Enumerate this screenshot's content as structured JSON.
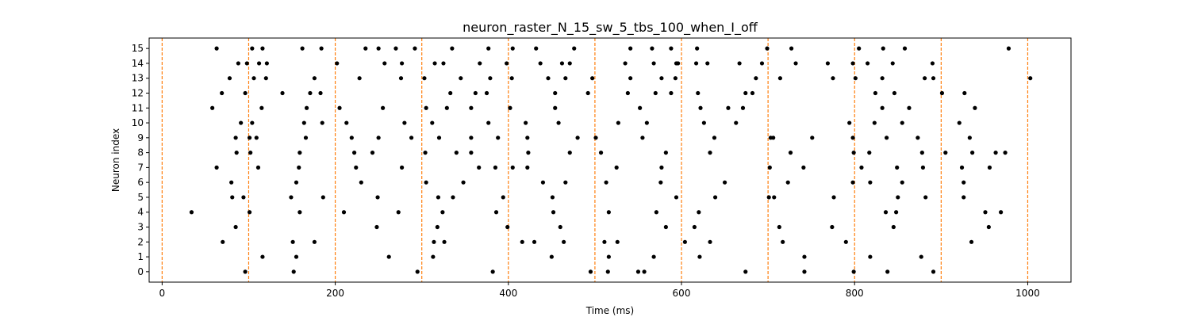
{
  "chart_data": {
    "type": "scatter",
    "title": "neuron_raster_N_15_sw_5_tbs_100_when_I_off",
    "xlabel": "Time (ms)",
    "ylabel": "Neuron index",
    "xlim": [
      -15,
      1050
    ],
    "ylim": [
      -0.7,
      15.7
    ],
    "xticks": [
      0,
      200,
      400,
      600,
      800,
      1000
    ],
    "yticks": [
      0,
      1,
      2,
      3,
      4,
      5,
      6,
      7,
      8,
      9,
      10,
      11,
      12,
      13,
      14,
      15
    ],
    "grid": false,
    "colors": {
      "spike": "#000000",
      "boundary": "#ff7f0e"
    },
    "boundaries": [
      0,
      100,
      200,
      300,
      400,
      500,
      600,
      700,
      800,
      900,
      1000
    ],
    "spikes": [
      {
        "neuron": 15,
        "times": [
          63,
          104,
          116,
          162,
          184,
          235,
          250,
          270,
          292,
          335,
          377,
          405,
          432,
          476,
          541,
          566,
          588,
          618,
          699,
          727,
          805,
          833,
          858,
          978
        ]
      },
      {
        "neuron": 14,
        "times": [
          88,
          98,
          112,
          121,
          202,
          257,
          277,
          315,
          325,
          367,
          398,
          437,
          462,
          471,
          535,
          568,
          594,
          596,
          617,
          630,
          667,
          693,
          732,
          769,
          798,
          815,
          844,
          890
        ]
      },
      {
        "neuron": 13,
        "times": [
          78,
          106,
          120,
          176,
          228,
          276,
          303,
          345,
          379,
          404,
          446,
          466,
          497,
          541,
          577,
          593,
          686,
          714,
          775,
          801,
          832,
          881,
          891,
          1003
        ]
      },
      {
        "neuron": 12,
        "times": [
          69,
          96,
          139,
          171,
          183,
          333,
          362,
          375,
          454,
          492,
          538,
          570,
          588,
          619,
          674,
          682,
          824,
          846,
          901,
          927
        ]
      },
      {
        "neuron": 11,
        "times": [
          58,
          115,
          167,
          205,
          255,
          305,
          329,
          357,
          402,
          454,
          552,
          622,
          654,
          671,
          832,
          863,
          939
        ]
      },
      {
        "neuron": 10,
        "times": [
          91,
          104,
          164,
          185,
          213,
          280,
          312,
          377,
          420,
          458,
          527,
          560,
          626,
          663,
          794,
          823,
          855,
          921
        ]
      },
      {
        "neuron": 9,
        "times": [
          85,
          101,
          109,
          166,
          219,
          250,
          288,
          320,
          357,
          388,
          422,
          480,
          501,
          555,
          638,
          703,
          706,
          751,
          798,
          837,
          873,
          933
        ]
      },
      {
        "neuron": 8,
        "times": [
          86,
          102,
          159,
          222,
          243,
          304,
          340,
          357,
          423,
          471,
          507,
          582,
          633,
          726,
          799,
          817,
          878,
          905,
          936,
          963,
          974
        ]
      },
      {
        "neuron": 7,
        "times": [
          63,
          111,
          158,
          224,
          277,
          366,
          385,
          405,
          422,
          525,
          577,
          702,
          741,
          808,
          849,
          879,
          924,
          956
        ]
      },
      {
        "neuron": 6,
        "times": [
          80,
          155,
          230,
          305,
          348,
          440,
          466,
          513,
          576,
          650,
          723,
          798,
          818,
          855,
          926
        ]
      },
      {
        "neuron": 5,
        "times": [
          81,
          94,
          149,
          186,
          249,
          319,
          336,
          394,
          451,
          594,
          639,
          701,
          707,
          776,
          850,
          882,
          926
        ]
      },
      {
        "neuron": 4,
        "times": [
          34,
          101,
          159,
          210,
          273,
          324,
          386,
          452,
          516,
          571,
          620,
          836,
          848,
          951,
          969
        ]
      },
      {
        "neuron": 3,
        "times": [
          85,
          248,
          318,
          399,
          460,
          582,
          615,
          713,
          774,
          845,
          955
        ]
      },
      {
        "neuron": 2,
        "times": [
          70,
          151,
          176,
          314,
          326,
          416,
          430,
          464,
          511,
          526,
          604,
          633,
          717,
          790,
          935
        ]
      },
      {
        "neuron": 1,
        "times": [
          116,
          155,
          262,
          313,
          450,
          516,
          568,
          621,
          742,
          818,
          877
        ]
      },
      {
        "neuron": 0,
        "times": [
          96,
          152,
          295,
          382,
          495,
          515,
          550,
          557,
          674,
          742,
          799,
          838,
          891
        ]
      }
    ]
  }
}
